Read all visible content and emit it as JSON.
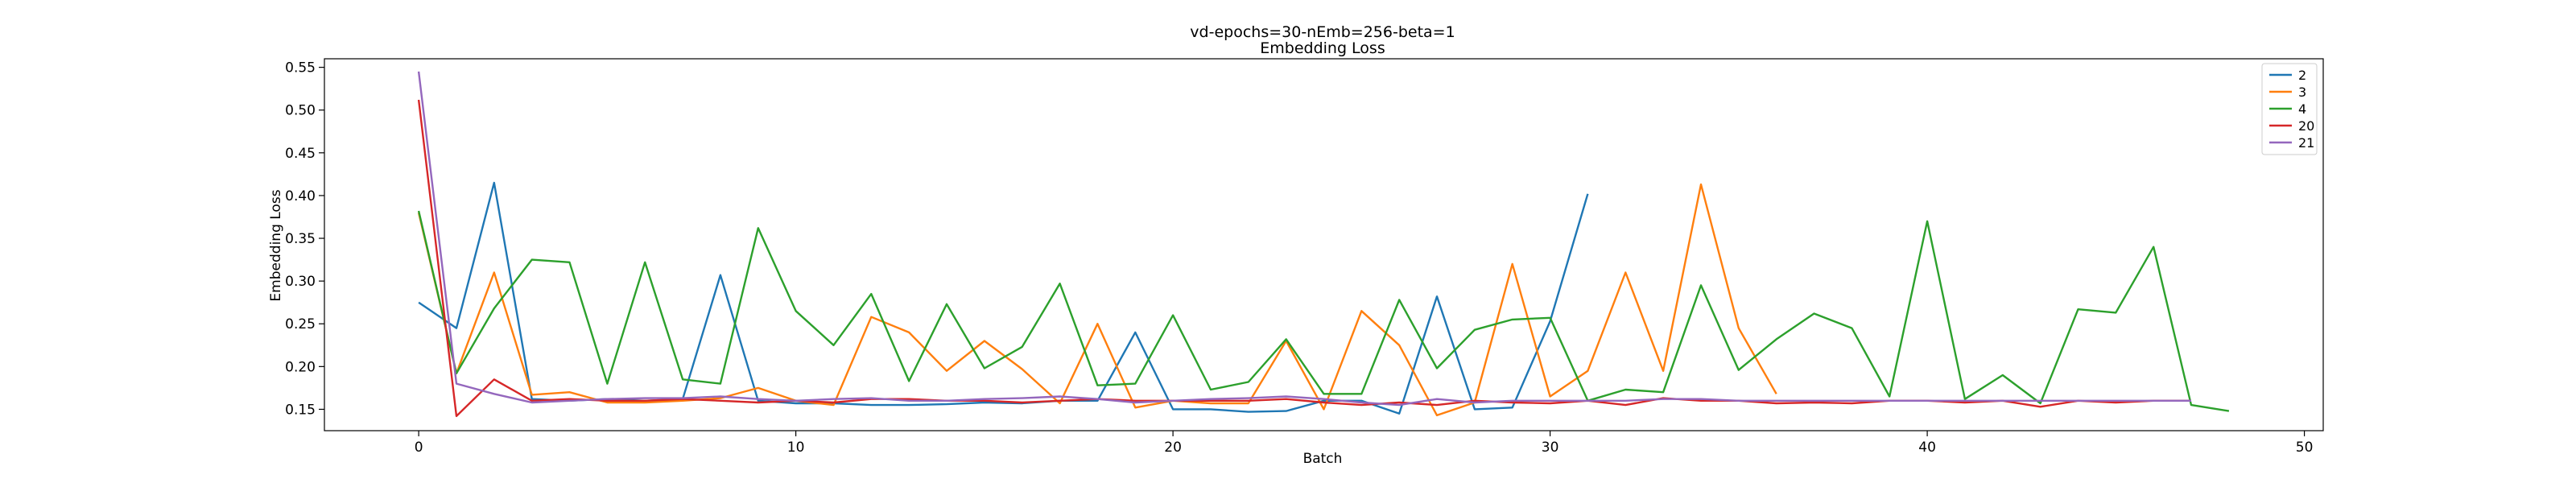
{
  "chart_data": {
    "type": "line",
    "title": "vd-epochs=30-nEmb=256-beta=1",
    "subtitle": "Embedding Loss",
    "xlabel": "Batch",
    "ylabel": "Embedding Loss",
    "xlim": [
      -2.5,
      50.5
    ],
    "ylim": [
      0.125,
      0.56
    ],
    "xticks": [
      0,
      10,
      20,
      30,
      40,
      50
    ],
    "yticks": [
      0.15,
      0.2,
      0.25,
      0.3,
      0.35,
      0.4,
      0.45,
      0.5,
      0.55
    ],
    "grid": false,
    "legend_position": "top-right",
    "series": [
      {
        "name": "2",
        "color": "#1f77b4",
        "x": [
          0,
          1,
          2,
          3,
          4,
          5,
          6,
          7,
          8,
          9,
          10,
          11,
          12,
          13,
          14,
          15,
          16,
          17,
          18,
          19,
          20,
          21,
          22,
          23,
          24,
          25,
          26,
          27,
          28,
          29,
          30,
          31
        ],
        "y": [
          0.275,
          0.245,
          0.415,
          0.162,
          0.16,
          0.162,
          0.16,
          0.162,
          0.307,
          0.16,
          0.157,
          0.157,
          0.155,
          0.155,
          0.156,
          0.158,
          0.157,
          0.16,
          0.16,
          0.24,
          0.15,
          0.15,
          0.147,
          0.148,
          0.16,
          0.16,
          0.145,
          0.282,
          0.15,
          0.152,
          0.253,
          0.402
        ]
      },
      {
        "name": "3",
        "color": "#ff7f0e",
        "x": [
          0,
          1,
          2,
          3,
          4,
          5,
          6,
          7,
          8,
          9,
          10,
          11,
          12,
          13,
          14,
          15,
          16,
          17,
          18,
          19,
          20,
          21,
          22,
          23,
          24,
          25,
          26,
          27,
          28,
          29,
          30,
          31,
          32,
          33,
          34,
          35,
          36
        ],
        "y": [
          0.38,
          0.192,
          0.31,
          0.167,
          0.17,
          0.158,
          0.158,
          0.16,
          0.163,
          0.175,
          0.16,
          0.155,
          0.258,
          0.24,
          0.195,
          0.23,
          0.197,
          0.157,
          0.25,
          0.152,
          0.16,
          0.157,
          0.157,
          0.23,
          0.15,
          0.265,
          0.225,
          0.143,
          0.158,
          0.32,
          0.165,
          0.195,
          0.31,
          0.195,
          0.413,
          0.245,
          0.168
        ]
      },
      {
        "name": "4",
        "color": "#2ca02c",
        "x": [
          0,
          1,
          2,
          3,
          4,
          5,
          6,
          7,
          8,
          9,
          10,
          11,
          12,
          13,
          14,
          15,
          16,
          17,
          18,
          19,
          20,
          21,
          22,
          23,
          24,
          25,
          26,
          27,
          28,
          29,
          30,
          31,
          32,
          33,
          34,
          35,
          36,
          37,
          38,
          39,
          40,
          41,
          42,
          43,
          44,
          45,
          46,
          47,
          48
        ],
        "y": [
          0.382,
          0.192,
          0.268,
          0.325,
          0.322,
          0.18,
          0.322,
          0.185,
          0.18,
          0.362,
          0.265,
          0.225,
          0.285,
          0.183,
          0.273,
          0.198,
          0.223,
          0.297,
          0.178,
          0.18,
          0.26,
          0.173,
          0.182,
          0.232,
          0.168,
          0.168,
          0.278,
          0.198,
          0.243,
          0.255,
          0.257,
          0.16,
          0.173,
          0.17,
          0.295,
          0.196,
          0.232,
          0.262,
          0.245,
          0.165,
          0.37,
          0.162,
          0.19,
          0.157,
          0.267,
          0.263,
          0.34,
          0.155,
          0.148
        ]
      },
      {
        "name": "20",
        "color": "#d62728",
        "x": [
          0,
          1,
          2,
          3,
          4,
          5,
          6,
          7,
          8,
          9,
          10,
          11,
          12,
          13,
          14,
          15,
          16,
          17,
          18,
          19,
          20,
          21,
          22,
          23,
          24,
          25,
          26,
          27,
          28,
          29,
          30,
          31,
          32,
          33,
          34,
          35,
          36,
          37,
          38,
          39,
          40,
          41,
          42,
          43,
          44,
          45,
          46,
          47
        ],
        "y": [
          0.512,
          0.142,
          0.185,
          0.16,
          0.162,
          0.16,
          0.16,
          0.162,
          0.16,
          0.158,
          0.16,
          0.158,
          0.162,
          0.162,
          0.16,
          0.16,
          0.158,
          0.16,
          0.162,
          0.16,
          0.16,
          0.16,
          0.16,
          0.162,
          0.158,
          0.155,
          0.158,
          0.155,
          0.16,
          0.158,
          0.157,
          0.16,
          0.155,
          0.163,
          0.16,
          0.16,
          0.157,
          0.158,
          0.157,
          0.16,
          0.16,
          0.158,
          0.16,
          0.153,
          0.16,
          0.158,
          0.16,
          0.16
        ]
      },
      {
        "name": "21",
        "color": "#9467bd",
        "x": [
          0,
          1,
          2,
          3,
          4,
          5,
          6,
          7,
          8,
          9,
          10,
          11,
          12,
          13,
          14,
          15,
          16,
          17,
          18,
          19,
          20,
          21,
          22,
          23,
          24,
          25,
          26,
          27,
          28,
          29,
          30,
          31,
          32,
          33,
          34,
          35,
          36,
          37,
          38,
          39,
          40,
          41,
          42,
          43,
          44,
          45,
          46,
          47
        ],
        "y": [
          0.545,
          0.18,
          0.168,
          0.158,
          0.16,
          0.162,
          0.163,
          0.163,
          0.165,
          0.162,
          0.16,
          0.162,
          0.163,
          0.16,
          0.16,
          0.162,
          0.163,
          0.165,
          0.162,
          0.158,
          0.16,
          0.162,
          0.163,
          0.165,
          0.162,
          0.158,
          0.155,
          0.162,
          0.158,
          0.16,
          0.16,
          0.16,
          0.16,
          0.162,
          0.162,
          0.16,
          0.16,
          0.16,
          0.16,
          0.16,
          0.16,
          0.16,
          0.16,
          0.16,
          0.16,
          0.16,
          0.16,
          0.16
        ]
      }
    ]
  }
}
